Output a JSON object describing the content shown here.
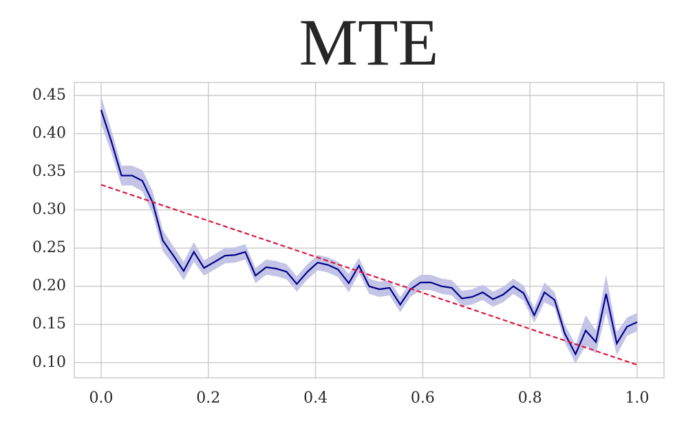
{
  "chart_data": {
    "type": "line",
    "title": "MTE",
    "x": [
      0,
      0.019,
      0.038,
      0.058,
      0.077,
      0.096,
      0.115,
      0.135,
      0.154,
      0.173,
      0.192,
      0.212,
      0.231,
      0.25,
      0.269,
      0.288,
      0.308,
      0.327,
      0.346,
      0.365,
      0.385,
      0.404,
      0.423,
      0.442,
      0.462,
      0.481,
      0.5,
      0.519,
      0.538,
      0.558,
      0.577,
      0.596,
      0.615,
      0.635,
      0.654,
      0.673,
      0.692,
      0.712,
      0.731,
      0.75,
      0.769,
      0.788,
      0.808,
      0.827,
      0.846,
      0.865,
      0.885,
      0.904,
      0.923,
      0.942,
      0.962,
      0.981,
      1
    ],
    "series": [
      {
        "color": "#00008b",
        "band_color": "#c4c4e6",
        "values": [
          0.431,
          0.39,
          0.345,
          0.345,
          0.338,
          0.31,
          0.26,
          0.24,
          0.22,
          0.245,
          0.224,
          0.232,
          0.24,
          0.241,
          0.245,
          0.214,
          0.225,
          0.223,
          0.219,
          0.203,
          0.219,
          0.231,
          0.228,
          0.222,
          0.204,
          0.227,
          0.2,
          0.196,
          0.198,
          0.176,
          0.196,
          0.205,
          0.205,
          0.2,
          0.198,
          0.184,
          0.186,
          0.192,
          0.183,
          0.189,
          0.2,
          0.191,
          0.162,
          0.192,
          0.182,
          0.138,
          0.111,
          0.142,
          0.127,
          0.19,
          0.125,
          0.147,
          0.153
        ],
        "errors": [
          0.018,
          0.015,
          0.013,
          0.013,
          0.014,
          0.015,
          0.014,
          0.012,
          0.012,
          0.013,
          0.01,
          0.01,
          0.01,
          0.01,
          0.01,
          0.01,
          0.01,
          0.01,
          0.01,
          0.01,
          0.01,
          0.01,
          0.01,
          0.01,
          0.012,
          0.01,
          0.01,
          0.01,
          0.01,
          0.01,
          0.01,
          0.01,
          0.01,
          0.01,
          0.01,
          0.01,
          0.01,
          0.01,
          0.01,
          0.01,
          0.01,
          0.01,
          0.01,
          0.013,
          0.01,
          0.012,
          0.012,
          0.02,
          0.015,
          0.025,
          0.015,
          0.012,
          0.012
        ]
      }
    ],
    "trend": {
      "x": [
        0,
        1
      ],
      "values": [
        0.333,
        0.097
      ],
      "color": "#dc143c",
      "dashed": true
    },
    "xlim": [
      -0.05,
      1.05
    ],
    "ylim": [
      0.08,
      0.467
    ],
    "xticks": [
      {
        "value": 0,
        "label": "0.0"
      },
      0.2,
      0.4,
      0.6,
      0.8,
      {
        "value": 1,
        "label": "1.0"
      }
    ],
    "yticks": [
      {
        "value": 0.1,
        "label": "0.10"
      },
      0.15,
      {
        "value": 0.2,
        "label": "0.20"
      },
      0.25,
      {
        "value": 0.3,
        "label": "0.30"
      },
      0.35,
      {
        "value": 0.4,
        "label": "0.40"
      },
      0.45
    ],
    "grid": true
  }
}
